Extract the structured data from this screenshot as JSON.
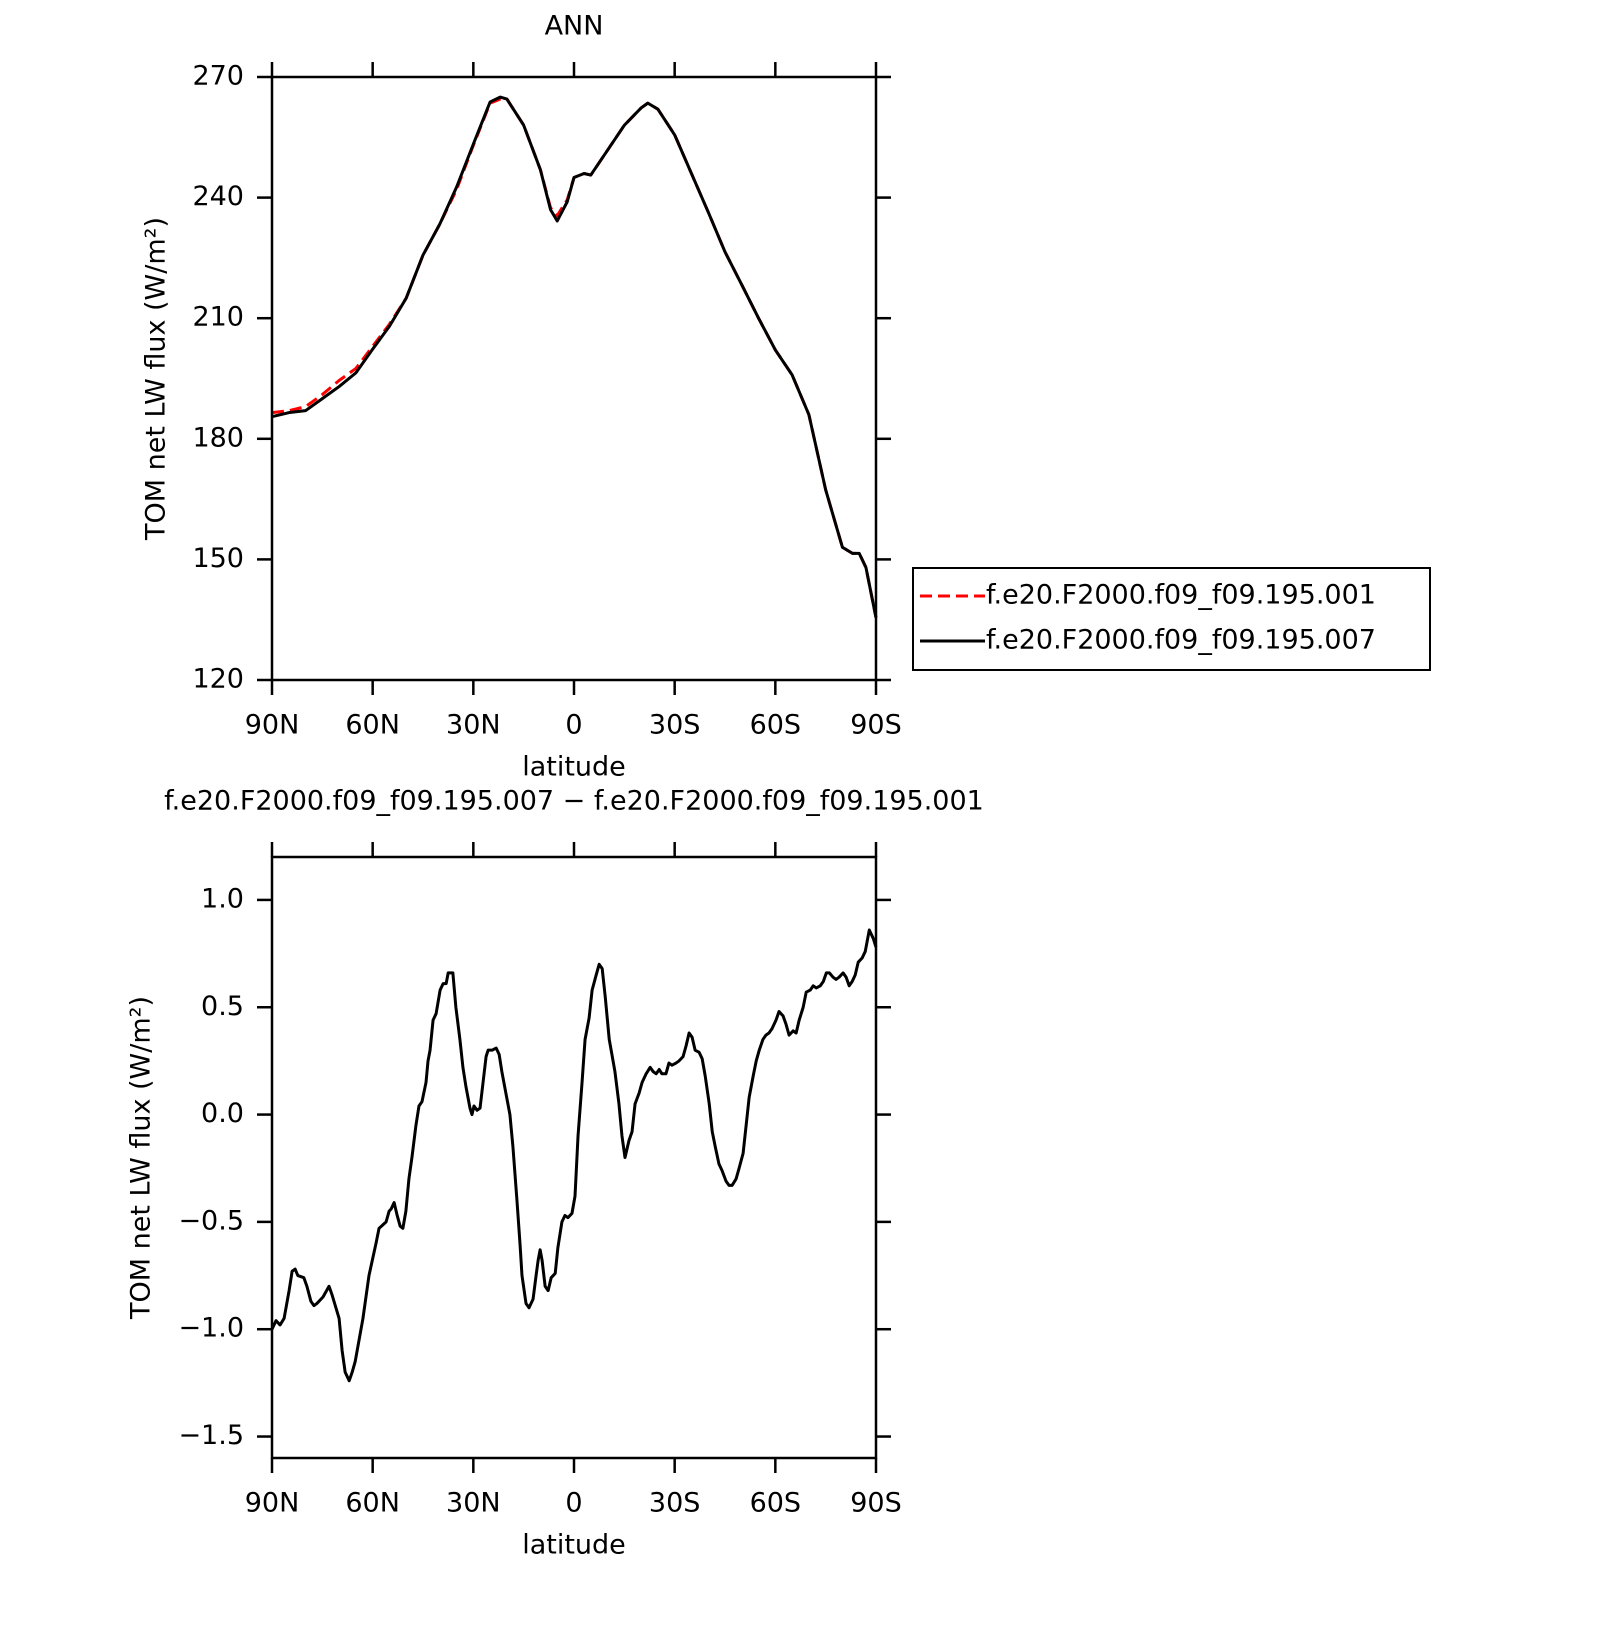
{
  "chart_data": [
    {
      "type": "line",
      "title": "ANN",
      "xlabel": "latitude",
      "ylabel": "TOM net LW flux (W/m²)",
      "x": [
        90,
        85,
        80,
        75,
        70,
        65,
        60,
        55,
        50,
        45,
        40,
        35,
        30,
        25,
        22,
        20,
        15,
        10,
        7,
        5,
        2,
        0,
        -3,
        -5,
        -10,
        -15,
        -20,
        -22,
        -25,
        -30,
        -35,
        -40,
        -45,
        -50,
        -55,
        -60,
        -65,
        -70,
        -75,
        -80,
        -83,
        -85,
        -87,
        -90
      ],
      "xlim": [
        90,
        -90
      ],
      "xticks": [
        {
          "value": 90,
          "label": "90N"
        },
        {
          "value": 60,
          "label": "60N"
        },
        {
          "value": 30,
          "label": "30N"
        },
        0,
        {
          "value": -30,
          "label": "30S"
        },
        {
          "value": -60,
          "label": "60S"
        },
        {
          "value": -90,
          "label": "90S"
        }
      ],
      "ylim": [
        120,
        270
      ],
      "yticks": [
        120,
        150,
        180,
        210,
        240,
        270
      ],
      "legend": "right",
      "series": [
        {
          "name": "f.e20.F2000.f09_f09.195.001",
          "color": "#ff0000",
          "linestyle": "dashed",
          "values": [
            186.5,
            187,
            188,
            191,
            194.5,
            197.5,
            203,
            208.5,
            215,
            225.7,
            233.4,
            242,
            253,
            263.5,
            264.5,
            264.5,
            258,
            246.9,
            237.5,
            235.5,
            239.5,
            245,
            246,
            245.6,
            251.8,
            258,
            262.3,
            263.5,
            262,
            255.6,
            246,
            236.4,
            226.5,
            218.3,
            210,
            202.1,
            195.9,
            186,
            167.3,
            153,
            151.5,
            151.5,
            148,
            135.5
          ]
        },
        {
          "name": "f.e20.F2000.f09_f09.195.007",
          "color": "#000000",
          "linestyle": "solid",
          "values": [
            185.5,
            186.5,
            187,
            190,
            193,
            196.4,
            202.3,
            208,
            215,
            225.7,
            233.4,
            242.6,
            253.3,
            263.8,
            265,
            264.5,
            258,
            246.9,
            237,
            234.2,
            239,
            245,
            246,
            245.6,
            251.8,
            258,
            262.3,
            263.5,
            262,
            255.6,
            246,
            236.4,
            226.5,
            218.3,
            210,
            202.1,
            195.9,
            186,
            167.3,
            153,
            151.5,
            151.5,
            148,
            135.5
          ]
        }
      ]
    },
    {
      "type": "line",
      "title": "f.e20.F2000.f09_f09.195.007 − f.e20.F2000.f09_f09.195.001",
      "xlabel": "latitude",
      "ylabel": "TOM net LW flux (W/m²)",
      "x": [
        90,
        88.8,
        87.6,
        86.4,
        84.9,
        84.0,
        83.1,
        82.3,
        80.5,
        79.6,
        78.4,
        77.5,
        76.6,
        74.8,
        73.0,
        72.1,
        70.0,
        69.1,
        68.2,
        67.0,
        66.1,
        65.2,
        62.9,
        61.1,
        59.0,
        58.1,
        56.0,
        55.1,
        54.5,
        53.6,
        52.7,
        51.8,
        51.0,
        50.1,
        49.2,
        48.3,
        47.1,
        46.2,
        45.3,
        44.1,
        43.5,
        42.9,
        42.0,
        41.1,
        39.9,
        39.0,
        38.1,
        37.5,
        36.1,
        35.2,
        34.0,
        33.1,
        32.2,
        31.0,
        30.4,
        29.8,
        28.9,
        28.0,
        27.1,
        26.2,
        25.6,
        24.4,
        23.2,
        22.3,
        21.5,
        20.3,
        19.1,
        18.2,
        17.0,
        16.1,
        15.5,
        14.3,
        13.4,
        12.2,
        11.3,
        10.7,
        10.1,
        9.5,
        8.6,
        7.7,
        6.8,
        5.6,
        4.8,
        3.6,
        2.7,
        1.8,
        0.6,
        -0.3,
        -1.2,
        -2.4,
        -3.3,
        -4.5,
        -5.4,
        -6.6,
        -7.5,
        -8.4,
        -9.3,
        -10.5,
        -11.3,
        -12.2,
        -13.4,
        -14.3,
        -15.2,
        -16.4,
        -17.3,
        -18.2,
        -19.4,
        -20.3,
        -21.5,
        -22.7,
        -23.6,
        -24.5,
        -25.4,
        -26.2,
        -27.4,
        -28.3,
        -29.2,
        -30.4,
        -31.3,
        -32.5,
        -33.4,
        -34.3,
        -35.2,
        -36.1,
        -37.3,
        -38.2,
        -39.1,
        -40.3,
        -41.2,
        -42.1,
        -43.2,
        -44.1,
        -45.3,
        -46.2,
        -47.1,
        -48.3,
        -49.2,
        -50.4,
        -51.3,
        -52.2,
        -53.4,
        -54.3,
        -55.2,
        -56.3,
        -57.2,
        -58.1,
        -59.0,
        -60.2,
        -61.1,
        -62.3,
        -63.2,
        -64.1,
        -65.3,
        -66.2,
        -67.1,
        -68.3,
        -69.2,
        -70.4,
        -71.3,
        -72.2,
        -73.4,
        -74.3,
        -75.2,
        -76.1,
        -77.2,
        -78.1,
        -79.0,
        -80.2,
        -81.1,
        -82.0,
        -82.9,
        -83.8,
        -84.7,
        -85.9,
        -86.8,
        -88.0,
        -89.2,
        -90
      ],
      "xlim": [
        90,
        -90
      ],
      "xticks": [
        {
          "value": 90,
          "label": "90N"
        },
        {
          "value": 60,
          "label": "60N"
        },
        {
          "value": 30,
          "label": "30N"
        },
        0,
        {
          "value": -30,
          "label": "30S"
        },
        {
          "value": -60,
          "label": "60S"
        },
        {
          "value": -90,
          "label": "90S"
        }
      ],
      "ylim": [
        -1.6,
        1.2
      ],
      "yticks": [
        {
          "value": -1.5,
          "label": "−1.5"
        },
        {
          "value": -1,
          "label": "−1.0"
        },
        {
          "value": -0.5,
          "label": "−0.5"
        },
        {
          "value": 0,
          "label": "0.0"
        },
        0.5,
        {
          "value": 1,
          "label": "1.0"
        }
      ],
      "series": [
        {
          "color": "#000000",
          "linestyle": "solid",
          "values": [
            -1.0,
            -0.96,
            -0.98,
            -0.95,
            -0.82,
            -0.73,
            -0.72,
            -0.75,
            -0.76,
            -0.8,
            -0.87,
            -0.89,
            -0.88,
            -0.85,
            -0.8,
            -0.84,
            -0.95,
            -1.1,
            -1.2,
            -1.24,
            -1.2,
            -1.15,
            -0.95,
            -0.75,
            -0.6,
            -0.53,
            -0.5,
            -0.45,
            -0.44,
            -0.41,
            -0.47,
            -0.52,
            -0.53,
            -0.45,
            -0.3,
            -0.2,
            -0.05,
            0.04,
            0.06,
            0.15,
            0.25,
            0.3,
            0.44,
            0.47,
            0.58,
            0.61,
            0.61,
            0.66,
            0.66,
            0.5,
            0.35,
            0.22,
            0.13,
            0.03,
            0.0,
            0.04,
            0.02,
            0.03,
            0.15,
            0.27,
            0.3,
            0.3,
            0.31,
            0.28,
            0.2,
            0.1,
            0.0,
            -0.15,
            -0.4,
            -0.6,
            -0.75,
            -0.88,
            -0.9,
            -0.86,
            -0.75,
            -0.68,
            -0.63,
            -0.68,
            -0.8,
            -0.82,
            -0.76,
            -0.74,
            -0.62,
            -0.5,
            -0.47,
            -0.48,
            -0.46,
            -0.38,
            -0.1,
            0.15,
            0.35,
            0.45,
            0.58,
            0.65,
            0.7,
            0.68,
            0.55,
            0.35,
            0.28,
            0.2,
            0.05,
            -0.1,
            -0.2,
            -0.12,
            -0.08,
            0.05,
            0.1,
            0.15,
            0.19,
            0.22,
            0.2,
            0.19,
            0.21,
            0.19,
            0.19,
            0.24,
            0.23,
            0.24,
            0.25,
            0.27,
            0.32,
            0.38,
            0.36,
            0.3,
            0.29,
            0.26,
            0.18,
            0.05,
            -0.08,
            -0.15,
            -0.23,
            -0.26,
            -0.31,
            -0.33,
            -0.33,
            -0.3,
            -0.25,
            -0.18,
            -0.05,
            0.08,
            0.18,
            0.25,
            0.3,
            0.35,
            0.37,
            0.38,
            0.4,
            0.44,
            0.48,
            0.46,
            0.42,
            0.37,
            0.39,
            0.38,
            0.44,
            0.5,
            0.57,
            0.58,
            0.6,
            0.59,
            0.6,
            0.62,
            0.66,
            0.66,
            0.64,
            0.63,
            0.64,
            0.66,
            0.64,
            0.6,
            0.62,
            0.65,
            0.71,
            0.73,
            0.76,
            0.86,
            0.82,
            0.78
          ]
        }
      ]
    }
  ]
}
